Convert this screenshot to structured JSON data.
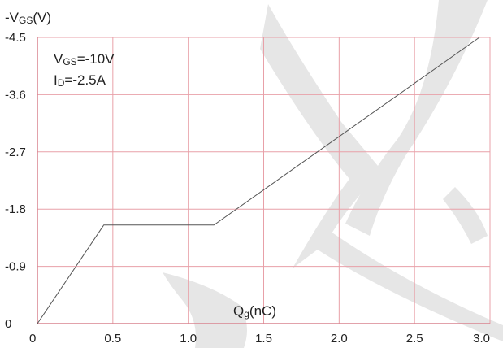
{
  "chart_data": {
    "type": "line",
    "ylabel": {
      "prefix": "-V",
      "sub": "GS",
      "suffix": "(V)"
    },
    "xlabel": {
      "prefix": "Q",
      "sub": "g",
      "suffix": "(nC)"
    },
    "annotations": [
      {
        "prefix": "V",
        "sub": "GS",
        "suffix": "=-10V"
      },
      {
        "prefix": "I",
        "sub": "D",
        "suffix": "=-2.5A"
      }
    ],
    "xlim": [
      0,
      3.0
    ],
    "ylim": [
      0,
      4.5
    ],
    "x_ticks": [
      0,
      0.5,
      1.0,
      1.5,
      2.0,
      2.5,
      3.0
    ],
    "x_tick_labels": [
      "0",
      "0.5",
      "1.0",
      "1.5",
      "2.0",
      "2.5",
      "3.0"
    ],
    "y_ticks": [
      0,
      0.9,
      1.8,
      2.7,
      3.6,
      4.5
    ],
    "y_tick_labels": [
      "0",
      "-0.9",
      "-1.8",
      "-2.7",
      "-3.6",
      "-4.5"
    ],
    "grid": true,
    "series": [
      {
        "x": [
          0,
          0.44,
          1.17,
          2.93
        ],
        "y": [
          0,
          1.55,
          1.55,
          4.5
        ]
      }
    ],
    "colors": {
      "grid": "#e8a0a8",
      "axis": "#d9848f",
      "line": "#555555",
      "watermark": "#e6e6e6"
    }
  }
}
